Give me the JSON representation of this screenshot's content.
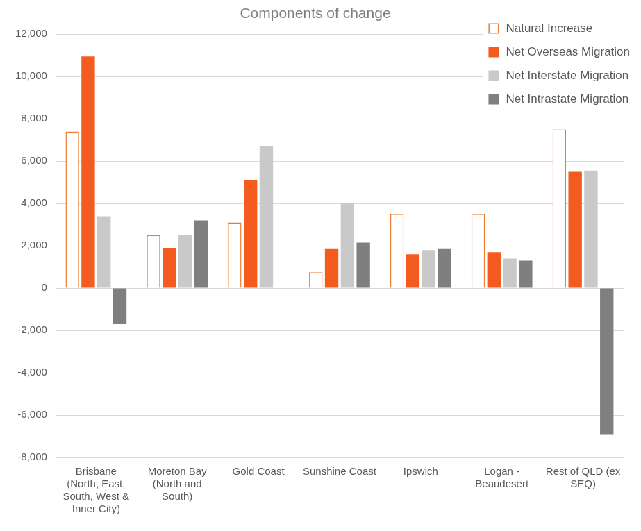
{
  "chart_data": {
    "type": "bar",
    "title": "Components of change",
    "categories": [
      "Brisbane (North, East, South, West & Inner City)",
      "Moreton Bay (North and South)",
      "Gold Coast",
      "Sunshine Coast",
      "Ipswich",
      "Logan - Beaudesert",
      "Rest of QLD (ex SEQ)"
    ],
    "series": [
      {
        "name": "Natural Increase",
        "color": "#ed7d31",
        "marker": "hollow",
        "values": [
          7400,
          2500,
          3100,
          750,
          3500,
          3500,
          7500
        ]
      },
      {
        "name": "Net Overseas Migration",
        "color": "#f45b1f",
        "values": [
          10950,
          1900,
          5100,
          1850,
          1600,
          1700,
          5500
        ]
      },
      {
        "name": "Net Interstate Migration",
        "color": "#c9c9c9",
        "values": [
          3400,
          2500,
          6700,
          4000,
          1800,
          1400,
          5550
        ]
      },
      {
        "name": "Net Intrastate Migration",
        "color": "#7f7f7f",
        "values": [
          -1700,
          3200,
          null,
          2150,
          1850,
          1300,
          -6900
        ]
      }
    ],
    "ylim": [
      -8000,
      12000
    ],
    "yticks": [
      {
        "value": -8000,
        "label": "-8,000"
      },
      {
        "value": -6000,
        "label": "-6,000"
      },
      {
        "value": -4000,
        "label": "-4,000"
      },
      {
        "value": -2000,
        "label": "-2,000"
      },
      0,
      {
        "value": 2000,
        "label": "2,000"
      },
      {
        "value": 4000,
        "label": "4,000"
      },
      {
        "value": 6000,
        "label": "6,000"
      },
      {
        "value": 8000,
        "label": "8,000"
      },
      {
        "value": 10000,
        "label": "10,000"
      },
      {
        "value": 12000,
        "label": "12,000"
      }
    ],
    "grid": true,
    "legend": "top-right"
  }
}
